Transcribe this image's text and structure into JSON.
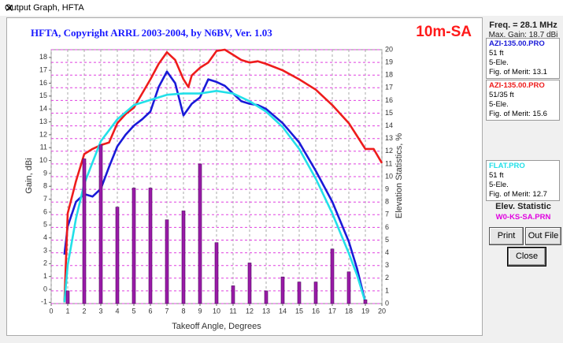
{
  "window": {
    "title": "Output Graph, HFTA"
  },
  "panel": {
    "freq": "Freq. = 28.1 MHz",
    "max_gain": "Max. Gain: 18.7 dBi",
    "elev_heading": "Elev. Statistic",
    "buttons": [
      "Print",
      "Out File",
      "Close"
    ]
  },
  "chart_data": {
    "type": "line",
    "title": "HFTA, Copyright ARRL 2003-2004, by N6BV, Ver. 1.03",
    "subtitle": "10m-SA",
    "xlabel": "Takeoff Angle, Degrees",
    "ylabel": "Gain, dBi",
    "y2label": "Elevation Statistics, %",
    "xlim": [
      0,
      20
    ],
    "xticks": [
      0,
      1,
      2,
      3,
      4,
      5,
      6,
      7,
      8,
      9,
      10,
      11,
      12,
      13,
      14,
      15,
      16,
      17,
      18,
      19,
      20
    ],
    "ylim": [
      -1.1,
      18.6
    ],
    "yticks": [
      -1,
      0,
      1,
      2,
      3,
      4,
      5,
      6,
      7,
      8,
      9,
      10,
      11,
      12,
      13,
      14,
      15,
      16,
      17,
      18
    ],
    "y2lim": [
      0,
      20
    ],
    "y2ticks": [
      0,
      1,
      2,
      3,
      4,
      5,
      6,
      7,
      8,
      9,
      10,
      11,
      12,
      13,
      14,
      15,
      16,
      17,
      18,
      19,
      20
    ],
    "grid": true,
    "series": [
      {
        "name": "AZI-135.00.PRO",
        "color": "#1a1ad8",
        "details": [
          "51 ft",
          "5-Ele.",
          "Fig. of Merit: 13.1"
        ],
        "x": [
          0.8,
          1,
          1.5,
          2,
          2.5,
          3,
          3.5,
          4,
          4.5,
          5,
          5.5,
          6,
          6.5,
          7,
          7.5,
          8,
          8.5,
          9,
          9.5,
          10,
          10.5,
          11,
          11.5,
          12,
          12.5,
          13,
          14,
          15,
          16,
          17,
          18,
          18.5,
          19
        ],
        "values": [
          2.7,
          4.9,
          6.8,
          7.4,
          7.2,
          7.8,
          9.5,
          11.1,
          12.0,
          12.7,
          13.2,
          13.8,
          15.7,
          16.9,
          16.0,
          13.5,
          14.4,
          14.9,
          16.3,
          16.1,
          15.8,
          15.2,
          14.6,
          14.4,
          14.3,
          14.0,
          12.9,
          11.4,
          9.2,
          6.8,
          3.7,
          1.6,
          -1.0
        ]
      },
      {
        "name": "AZI-135.00.PRO",
        "color": "#ee1c1c",
        "details": [
          "51/35 ft",
          "5-Ele.",
          "Fig. of Merit: 15.6"
        ],
        "x": [
          0.8,
          1,
          1.5,
          2,
          2.5,
          3,
          3.5,
          4,
          4.5,
          5,
          5.5,
          6,
          6.5,
          7,
          7.5,
          8,
          8.3,
          8.5,
          9,
          9.5,
          10,
          10.5,
          11,
          11.5,
          12,
          12.5,
          13,
          14,
          15,
          16,
          17,
          18,
          18.5,
          19,
          19.5,
          20
        ],
        "values": [
          -1.0,
          5.9,
          8.4,
          10.5,
          10.9,
          11.2,
          11.4,
          12.9,
          13.6,
          14.1,
          15.2,
          16.3,
          17.5,
          18.4,
          17.8,
          16.3,
          15.7,
          16.6,
          17.2,
          17.6,
          18.5,
          18.6,
          18.2,
          17.8,
          17.6,
          17.7,
          17.5,
          17.0,
          16.3,
          15.5,
          14.3,
          12.9,
          11.9,
          10.9,
          10.9,
          9.8
        ]
      },
      {
        "name": "FLAT.PRO",
        "color": "#22e0e8",
        "details": [
          "51 ft",
          "5-Ele.",
          "Fig. of Merit: 12.7"
        ],
        "x": [
          0.8,
          1,
          1.5,
          2,
          3,
          4,
          5,
          6,
          7,
          8,
          9,
          10,
          11,
          12,
          13,
          14,
          15,
          16,
          17,
          18,
          18.5,
          19
        ],
        "values": [
          -1.0,
          1.9,
          5.5,
          8.2,
          11.5,
          13.2,
          14.3,
          14.7,
          15.1,
          15.2,
          15.2,
          15.4,
          15.2,
          14.6,
          13.8,
          12.6,
          10.9,
          8.6,
          5.9,
          2.8,
          1.1,
          -1.0
        ]
      },
      {
        "name": "W0-KS-SA.PRN",
        "type": "bar",
        "axis": "y2",
        "color": "#9a1aa8",
        "x": [
          1,
          2,
          3,
          4,
          5,
          6,
          7,
          8,
          9,
          10,
          11,
          12,
          13,
          14,
          15,
          16,
          17,
          18,
          19
        ],
        "values": [
          1.0,
          11.4,
          12.5,
          7.6,
          9.1,
          9.1,
          6.6,
          7.3,
          11.0,
          4.8,
          1.4,
          3.2,
          1.0,
          2.1,
          1.7,
          1.7,
          4.3,
          2.5,
          0.3
        ]
      }
    ]
  }
}
